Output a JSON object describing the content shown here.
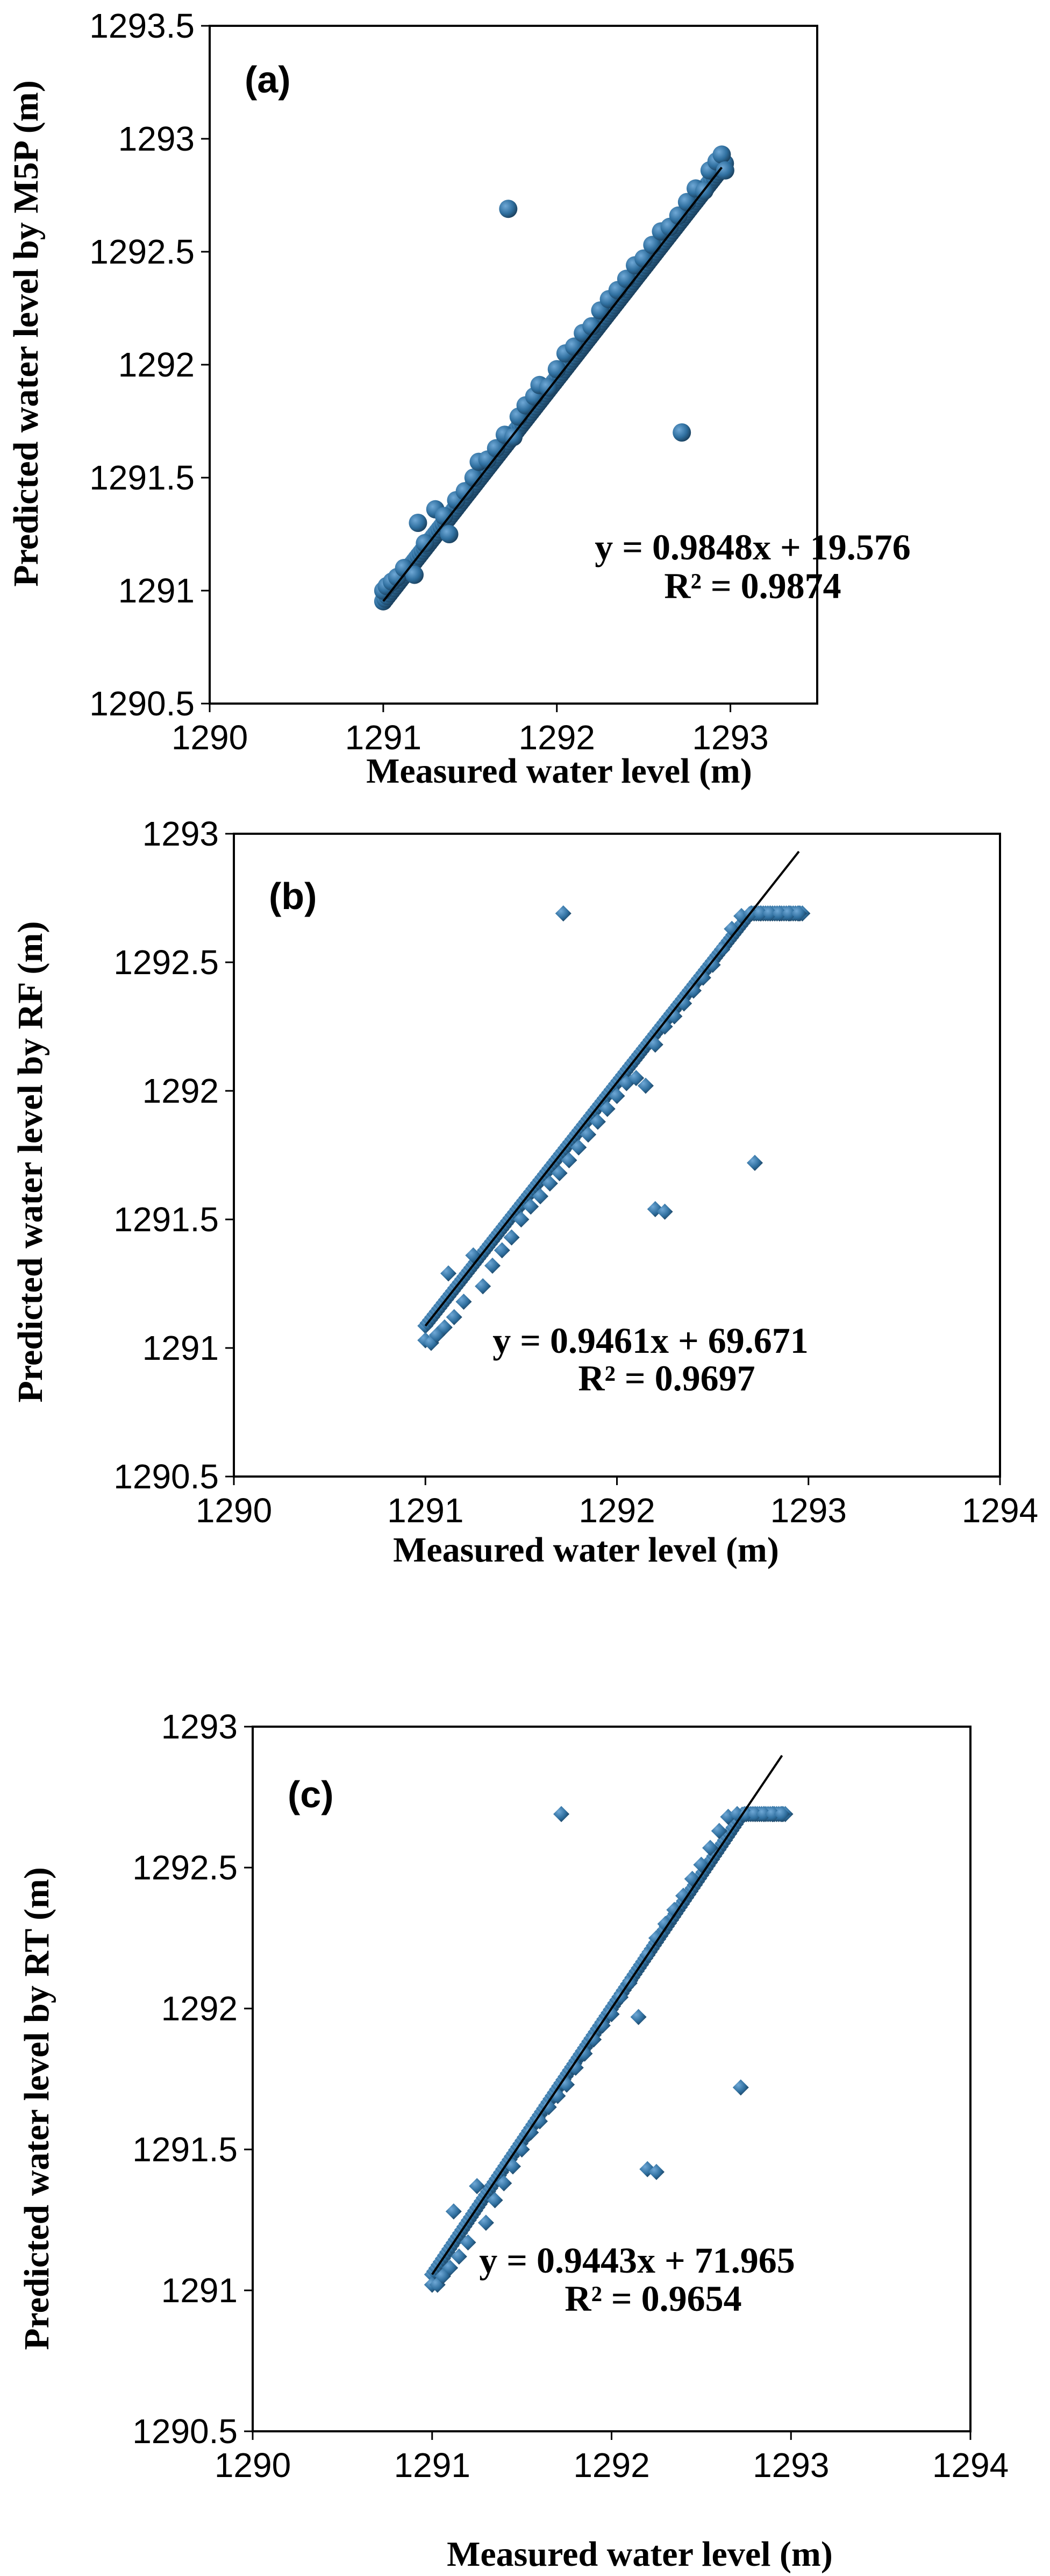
{
  "chart_data": [
    {
      "type": "scatter",
      "panel_label": "(a)",
      "xlabel": "Measured water level (m)",
      "ylabel": "Predicted water level by M5P (m)",
      "xlim": [
        1290,
        1293.5
      ],
      "ylim": [
        1290.5,
        1293.5
      ],
      "xticks": [
        1290,
        1291,
        1292,
        1293
      ],
      "yticks": [
        1290.5,
        1291,
        1291.5,
        1292,
        1292.5,
        1293,
        1293.5
      ],
      "x_tick_labels": [
        "1290",
        "1291",
        "1292",
        "1293"
      ],
      "y_tick_labels": [
        "1290.5",
        "1291",
        "1291.5",
        "1292",
        "1292.5",
        "1293",
        "1293.5"
      ],
      "marker": "circle",
      "marker_color": "#2f6f9f",
      "trendline": {
        "slope": 0.9848,
        "intercept": 19.576,
        "x_range": [
          1291.0,
          1292.95
        ]
      },
      "equation_text": "y = 0.9848x + 19.576",
      "r2_text": "R² = 0.9874",
      "cap": null,
      "points": [
        [
          1291.0,
          1291.0
        ],
        [
          1291.02,
          1291.02
        ],
        [
          1291.05,
          1291.04
        ],
        [
          1291.08,
          1291.06
        ],
        [
          1291.12,
          1291.1
        ],
        [
          1291.18,
          1291.07
        ],
        [
          1291.2,
          1291.3
        ],
        [
          1291.24,
          1291.21
        ],
        [
          1291.3,
          1291.36
        ],
        [
          1291.35,
          1291.33
        ],
        [
          1291.38,
          1291.25
        ],
        [
          1291.42,
          1291.4
        ],
        [
          1291.47,
          1291.44
        ],
        [
          1291.52,
          1291.5
        ],
        [
          1291.55,
          1291.57
        ],
        [
          1291.6,
          1291.58
        ],
        [
          1291.65,
          1291.63
        ],
        [
          1291.7,
          1291.69
        ],
        [
          1291.75,
          1291.68
        ],
        [
          1291.78,
          1291.77
        ],
        [
          1291.82,
          1291.82
        ],
        [
          1291.87,
          1291.86
        ],
        [
          1291.9,
          1291.91
        ],
        [
          1291.95,
          1291.9
        ],
        [
          1292.0,
          1291.98
        ],
        [
          1292.05,
          1292.05
        ],
        [
          1292.1,
          1292.08
        ],
        [
          1292.15,
          1292.14
        ],
        [
          1292.2,
          1292.17
        ],
        [
          1292.25,
          1292.24
        ],
        [
          1292.3,
          1292.29
        ],
        [
          1292.35,
          1292.33
        ],
        [
          1292.4,
          1292.38
        ],
        [
          1292.45,
          1292.44
        ],
        [
          1292.5,
          1292.47
        ],
        [
          1292.55,
          1292.53
        ],
        [
          1292.6,
          1292.59
        ],
        [
          1292.65,
          1292.61
        ],
        [
          1292.7,
          1292.66
        ],
        [
          1292.75,
          1292.72
        ],
        [
          1292.8,
          1292.78
        ],
        [
          1292.85,
          1292.77
        ],
        [
          1292.88,
          1292.86
        ],
        [
          1292.92,
          1292.9
        ],
        [
          1292.95,
          1292.93
        ],
        [
          1292.97,
          1292.86
        ],
        [
          1291.72,
          1292.69
        ],
        [
          1292.72,
          1291.7
        ]
      ]
    },
    {
      "type": "scatter",
      "panel_label": "(b)",
      "xlabel": "Measured water level (m)",
      "ylabel": "Predicted water level by RF (m)",
      "xlim": [
        1290,
        1294
      ],
      "ylim": [
        1290.5,
        1293
      ],
      "xticks": [
        1290,
        1291,
        1292,
        1293,
        1294
      ],
      "yticks": [
        1290.5,
        1291,
        1291.5,
        1292,
        1292.5,
        1293
      ],
      "x_tick_labels": [
        "1290",
        "1291",
        "1292",
        "1293",
        "1294"
      ],
      "y_tick_labels": [
        "1290.5",
        "1291",
        "1291.5",
        "1292",
        "1292.5",
        "1293"
      ],
      "marker": "diamond",
      "marker_color": "#2f6f9f",
      "trendline": {
        "slope": 0.9461,
        "intercept": 69.671,
        "x_range": [
          1291.0,
          1292.95
        ]
      },
      "equation_text": "y = 0.9461x + 69.671",
      "r2_text": "R² = 0.9697",
      "cap": 1292.69,
      "points": [
        [
          1291.0,
          1291.03
        ],
        [
          1291.03,
          1291.02
        ],
        [
          1291.06,
          1291.05
        ],
        [
          1291.1,
          1291.08
        ],
        [
          1291.12,
          1291.29
        ],
        [
          1291.15,
          1291.12
        ],
        [
          1291.2,
          1291.18
        ],
        [
          1291.25,
          1291.36
        ],
        [
          1291.3,
          1291.24
        ],
        [
          1291.35,
          1291.32
        ],
        [
          1291.4,
          1291.38
        ],
        [
          1291.45,
          1291.43
        ],
        [
          1291.5,
          1291.5
        ],
        [
          1291.55,
          1291.55
        ],
        [
          1291.6,
          1291.59
        ],
        [
          1291.65,
          1291.64
        ],
        [
          1291.7,
          1291.68
        ],
        [
          1291.75,
          1291.73
        ],
        [
          1291.8,
          1291.78
        ],
        [
          1291.85,
          1291.83
        ],
        [
          1291.9,
          1291.88
        ],
        [
          1291.95,
          1291.93
        ],
        [
          1292.0,
          1291.98
        ],
        [
          1292.05,
          1292.03
        ],
        [
          1292.1,
          1292.05
        ],
        [
          1292.15,
          1292.02
        ],
        [
          1292.2,
          1292.18
        ],
        [
          1292.25,
          1292.25
        ],
        [
          1292.3,
          1292.29
        ],
        [
          1292.35,
          1292.34
        ],
        [
          1292.4,
          1292.39
        ],
        [
          1292.45,
          1292.44
        ],
        [
          1292.5,
          1292.49
        ],
        [
          1292.55,
          1292.55
        ],
        [
          1292.6,
          1292.63
        ],
        [
          1292.65,
          1292.68
        ],
        [
          1292.7,
          1292.69
        ],
        [
          1292.75,
          1292.69
        ],
        [
          1292.8,
          1292.69
        ],
        [
          1292.85,
          1292.69
        ],
        [
          1292.9,
          1292.69
        ],
        [
          1292.95,
          1292.69
        ],
        [
          1291.72,
          1292.69
        ],
        [
          1292.72,
          1291.72
        ],
        [
          1292.2,
          1291.54
        ],
        [
          1292.25,
          1291.53
        ]
      ]
    },
    {
      "type": "scatter",
      "panel_label": "(c)",
      "xlabel": "Measured water level (m)",
      "ylabel": "Predicted water level by RT (m)",
      "xlim": [
        1290,
        1294
      ],
      "ylim": [
        1290.5,
        1293
      ],
      "xticks": [
        1290,
        1291,
        1292,
        1293,
        1294
      ],
      "yticks": [
        1290.5,
        1291,
        1291.5,
        1292,
        1292.5,
        1293
      ],
      "x_tick_labels": [
        "1290",
        "1291",
        "1292",
        "1293",
        "1294"
      ],
      "y_tick_labels": [
        "1290.5",
        "1291",
        "1291.5",
        "1292",
        "1292.5",
        "1293"
      ],
      "marker": "diamond",
      "marker_color": "#2f6f9f",
      "trendline": {
        "slope": 0.9443,
        "intercept": 71.965,
        "x_range": [
          1291.0,
          1292.95
        ]
      },
      "equation_text": "y = 0.9443x + 71.965",
      "r2_text": "R² = 0.9654",
      "cap": 1292.69,
      "points": [
        [
          1291.0,
          1291.02
        ],
        [
          1291.03,
          1291.02
        ],
        [
          1291.06,
          1291.05
        ],
        [
          1291.1,
          1291.08
        ],
        [
          1291.12,
          1291.28
        ],
        [
          1291.15,
          1291.12
        ],
        [
          1291.2,
          1291.17
        ],
        [
          1291.25,
          1291.37
        ],
        [
          1291.3,
          1291.24
        ],
        [
          1291.35,
          1291.32
        ],
        [
          1291.4,
          1291.38
        ],
        [
          1291.45,
          1291.44
        ],
        [
          1291.5,
          1291.5
        ],
        [
          1291.55,
          1291.56
        ],
        [
          1291.6,
          1291.6
        ],
        [
          1291.65,
          1291.65
        ],
        [
          1291.7,
          1291.69
        ],
        [
          1291.75,
          1291.73
        ],
        [
          1291.8,
          1291.79
        ],
        [
          1291.85,
          1291.84
        ],
        [
          1291.9,
          1291.89
        ],
        [
          1291.95,
          1291.94
        ],
        [
          1292.0,
          1291.98
        ],
        [
          1292.05,
          1292.04
        ],
        [
          1292.1,
          1292.09
        ],
        [
          1292.15,
          1291.97
        ],
        [
          1292.2,
          1292.19
        ],
        [
          1292.25,
          1292.25
        ],
        [
          1292.3,
          1292.3
        ],
        [
          1292.35,
          1292.35
        ],
        [
          1292.4,
          1292.4
        ],
        [
          1292.45,
          1292.46
        ],
        [
          1292.5,
          1292.51
        ],
        [
          1292.55,
          1292.57
        ],
        [
          1292.6,
          1292.63
        ],
        [
          1292.65,
          1292.68
        ],
        [
          1292.7,
          1292.69
        ],
        [
          1292.75,
          1292.69
        ],
        [
          1292.8,
          1292.69
        ],
        [
          1292.85,
          1292.69
        ],
        [
          1292.9,
          1292.69
        ],
        [
          1292.95,
          1292.69
        ],
        [
          1291.72,
          1292.69
        ],
        [
          1292.72,
          1291.72
        ],
        [
          1292.2,
          1291.43
        ],
        [
          1292.25,
          1291.42
        ]
      ]
    }
  ]
}
